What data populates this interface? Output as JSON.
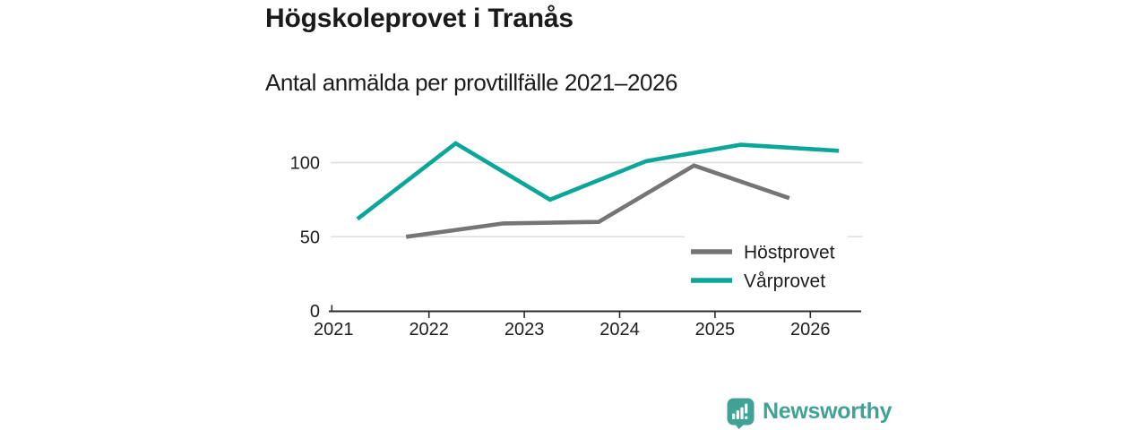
{
  "header": {
    "title": "Högskoleprovet i Tranås",
    "subtitle": "Antal anmälda per provtillfälle 2021–2026"
  },
  "chart_data": {
    "type": "line",
    "title": "Högskoleprovet i Tranås",
    "subtitle": "Antal anmälda per provtillfälle 2021–2026",
    "xlabel": "",
    "ylabel": "",
    "x_ticks": [
      2021,
      2022,
      2023,
      2024,
      2025,
      2026
    ],
    "y_ticks": [
      0,
      50,
      100
    ],
    "ylim": [
      0,
      120
    ],
    "xlim": [
      2020.97,
      2026.55
    ],
    "grid": "horizontal",
    "legend_position": "inside-right",
    "series": [
      {
        "name": "Höstprovet",
        "color": "#757575",
        "x": [
          2021.76,
          2022.78,
          2023.78,
          2024.78,
          2025.78
        ],
        "values": [
          50,
          59,
          60,
          98,
          76
        ]
      },
      {
        "name": "Vårprovet",
        "color": "#0ba69a",
        "x": [
          2021.25,
          2022.28,
          2023.27,
          2024.28,
          2025.27,
          2026.3
        ],
        "values": [
          62,
          113,
          75,
          101,
          112,
          108
        ]
      }
    ]
  },
  "footer": {
    "brand_name": "Newsworthy",
    "brand_color": "#3fa294",
    "logo_icon": "newsworthy-bar-chart-speech-bubble-icon"
  }
}
